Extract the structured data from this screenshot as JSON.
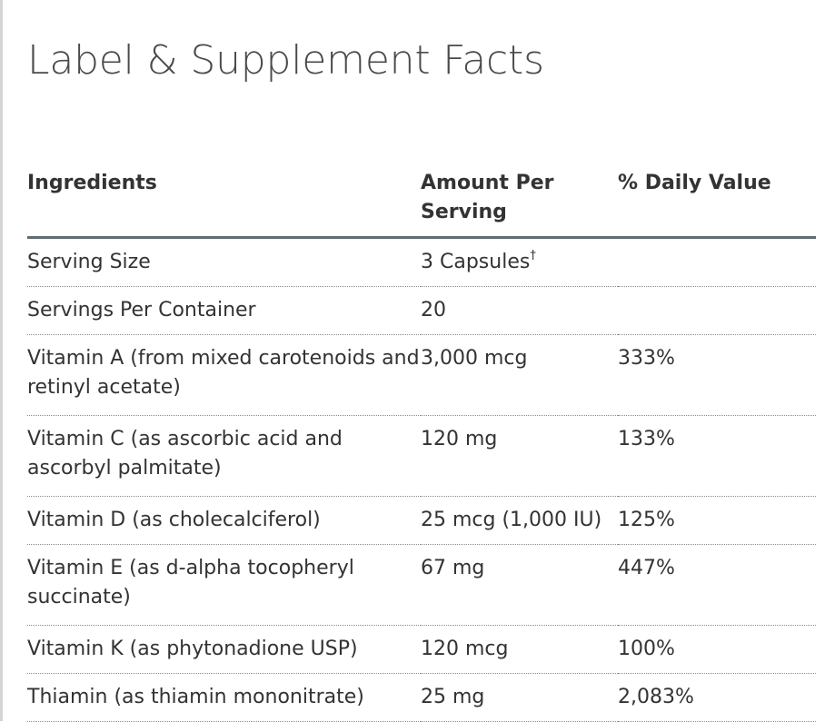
{
  "title": "Label & Supplement Facts",
  "headers": {
    "ingredients": "Ingredients",
    "amount_per_serving": "Amount Per Serving",
    "daily_value": "% Daily Value"
  },
  "rows": [
    {
      "ingredient": "Serving Size",
      "amount": "3 Capsules",
      "amount_note": "†",
      "dv": ""
    },
    {
      "ingredient": "Servings Per Container",
      "amount": "20",
      "dv": ""
    },
    {
      "ingredient": "Vitamin A (from mixed carotenoids and retinyl acetate)",
      "amount": "3,000 mcg",
      "dv": "333%"
    },
    {
      "ingredient": "Vitamin C (as ascorbic acid and ascorbyl palmitate)",
      "amount": "120 mg",
      "dv": "133%"
    },
    {
      "ingredient": "Vitamin D (as cholecalciferol)",
      "amount": "25 mcg (1,000 IU)",
      "dv": "125%"
    },
    {
      "ingredient": "Vitamin E (as d-alpha tocopheryl succinate)",
      "amount": "67 mg",
      "dv": "447%"
    },
    {
      "ingredient": "Vitamin K (as phytonadione USP)",
      "amount": "120 mcg",
      "dv": "100%"
    },
    {
      "ingredient": "Thiamin (as thiamin mononitrate)",
      "amount": "25 mg",
      "dv": "2,083%"
    }
  ],
  "colors": {
    "text": "#333333",
    "title": "#4a4a4a",
    "header_rule": "#5f6c72",
    "row_rule": "#8a8a8a"
  }
}
